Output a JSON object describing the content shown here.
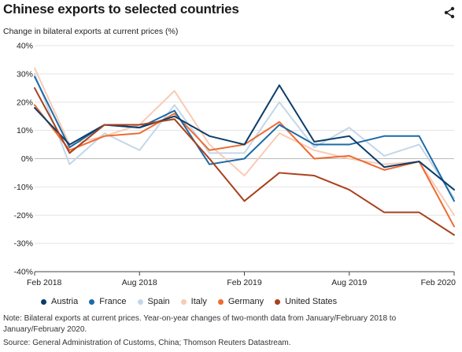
{
  "header": {
    "title": "Chinese exports to selected countries",
    "subtitle": "Change in bilateral exports at current prices (%)"
  },
  "chart_data": {
    "type": "line",
    "x": [
      0,
      1,
      2,
      3,
      4,
      5,
      6,
      7,
      8,
      9,
      10,
      11,
      12
    ],
    "x_tick_labels": [
      {
        "at": 0,
        "label": "Feb 2018"
      },
      {
        "at": 3,
        "label": "Aug 2018"
      },
      {
        "at": 6,
        "label": "Feb 2019"
      },
      {
        "at": 9,
        "label": "Aug 2019"
      },
      {
        "at": 12,
        "label": "Feb 2020"
      }
    ],
    "y_ticks": [
      40,
      30,
      20,
      10,
      0,
      -10,
      -20,
      -30,
      -40
    ],
    "y_tick_labels": [
      "40%",
      "30%",
      "20%",
      "10%",
      "0%",
      "-10%",
      "-20%",
      "-30%",
      "-40%"
    ],
    "ylim": [
      -40,
      40
    ],
    "grid": true,
    "legend_position": "bottom",
    "series": [
      {
        "name": "Austria",
        "color": "#0b3d6b",
        "values": [
          18,
          5,
          12,
          11,
          15,
          8,
          5,
          26,
          6,
          8,
          -3,
          -1,
          -11
        ]
      },
      {
        "name": "France",
        "color": "#1c6aa6",
        "values": [
          29,
          4,
          12,
          11,
          17,
          -2,
          0,
          12,
          5,
          5,
          8,
          8,
          -15
        ]
      },
      {
        "name": "Spain",
        "color": "#c3d7e9",
        "values": [
          30,
          -2,
          9,
          3,
          19,
          2,
          2,
          20,
          4,
          11,
          1,
          5,
          -14
        ]
      },
      {
        "name": "Italy",
        "color": "#f8cbb5",
        "values": [
          32,
          5,
          8,
          12,
          24,
          5,
          -6,
          9,
          3,
          0,
          -2,
          -1,
          -20
        ]
      },
      {
        "name": "Germany",
        "color": "#ed6c34",
        "values": [
          19,
          3,
          8,
          9,
          16,
          3,
          5,
          13,
          0,
          1,
          -4,
          -1,
          -24
        ]
      },
      {
        "name": "United States",
        "color": "#a9411c",
        "values": [
          25,
          2,
          12,
          12,
          14,
          0,
          -15,
          -5,
          -6,
          -11,
          -19,
          -19,
          -27
        ]
      }
    ]
  },
  "footer": {
    "note": "Note: Bilateral exports at current prices. Year-on-year changes of two-month data from January/February 2018 to January/February 2020.",
    "source": "Source: General Administration of Customs, China; Thomson Reuters Datastream."
  }
}
